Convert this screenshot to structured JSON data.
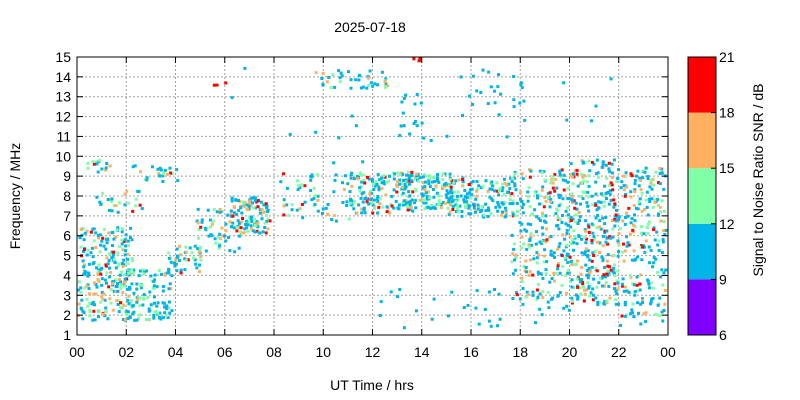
{
  "chart_data": {
    "type": "scatter",
    "title": "2025-07-18",
    "xlabel": "UT Time / hrs",
    "ylabel": "Frequency / MHz",
    "xlim": [
      0,
      24
    ],
    "ylim": [
      1,
      15
    ],
    "grid": true,
    "x_ticks": [
      "00",
      "02",
      "04",
      "06",
      "08",
      "10",
      "12",
      "14",
      "16",
      "18",
      "20",
      "22",
      "00"
    ],
    "y_ticks": [
      "1",
      "2",
      "3",
      "4",
      "5",
      "6",
      "7",
      "8",
      "9",
      "10",
      "11",
      "12",
      "13",
      "14",
      "15"
    ],
    "colorbar": {
      "label": "Signal to Noise Ratio SNR / dB",
      "ticks": [
        "6",
        "9",
        "12",
        "15",
        "18",
        "21"
      ],
      "bins": [
        {
          "min": 6,
          "max": 9,
          "color": "#8000ff"
        },
        {
          "min": 9,
          "max": 12,
          "color": "#00b4e8"
        },
        {
          "min": 12,
          "max": 15,
          "color": "#80ffa8"
        },
        {
          "min": 15,
          "max": 18,
          "color": "#ffb060"
        },
        {
          "min": 18,
          "max": 21,
          "color": "#ff0000"
        }
      ]
    },
    "clusters": [
      {
        "t": [
          0.0,
          2.2
        ],
        "f": [
          1.8,
          6.5
        ],
        "n": 230,
        "snr": [
          9.5,
          19.5
        ]
      },
      {
        "t": [
          0.3,
          1.3
        ],
        "f": [
          9.2,
          9.9
        ],
        "n": 14,
        "snr": [
          9.5,
          19
        ]
      },
      {
        "t": [
          0.6,
          2.6
        ],
        "f": [
          7.2,
          8.4
        ],
        "n": 26,
        "snr": [
          9.5,
          19
        ]
      },
      {
        "t": [
          1.8,
          3.8
        ],
        "f": [
          1.8,
          4.4
        ],
        "n": 120,
        "snr": [
          9.5,
          16
        ]
      },
      {
        "t": [
          2.0,
          4.2
        ],
        "f": [
          8.8,
          9.6
        ],
        "n": 22,
        "snr": [
          9.5,
          19
        ]
      },
      {
        "t": [
          3.6,
          5.0
        ],
        "f": [
          4.2,
          5.6
        ],
        "n": 40,
        "snr": [
          10,
          19.5
        ]
      },
      {
        "t": [
          4.8,
          6.6
        ],
        "f": [
          5.2,
          7.4
        ],
        "n": 55,
        "snr": [
          9.5,
          19
        ]
      },
      {
        "t": [
          6.2,
          7.8
        ],
        "f": [
          6.2,
          8.0
        ],
        "n": 110,
        "snr": [
          10,
          20
        ]
      },
      {
        "t": [
          8.2,
          11.0
        ],
        "f": [
          6.8,
          9.2
        ],
        "n": 55,
        "snr": [
          9.5,
          19
        ]
      },
      {
        "t": [
          9.6,
          12.6
        ],
        "f": [
          13.5,
          14.4
        ],
        "n": 40,
        "snr": [
          9.5,
          17
        ]
      },
      {
        "t": [
          11.0,
          13.6
        ],
        "f": [
          7.2,
          9.3
        ],
        "n": 150,
        "snr": [
          9.5,
          20
        ]
      },
      {
        "t": [
          13.0,
          15.2
        ],
        "f": [
          7.4,
          9.2
        ],
        "n": 130,
        "snr": [
          9.5,
          17
        ]
      },
      {
        "t": [
          13.0,
          14.4
        ],
        "f": [
          10.8,
          13.4
        ],
        "n": 16,
        "snr": [
          9.5,
          12
        ]
      },
      {
        "t": [
          15.0,
          17.8
        ],
        "f": [
          7.0,
          9.0
        ],
        "n": 160,
        "snr": [
          9.5,
          19.5
        ]
      },
      {
        "t": [
          15.8,
          18.2
        ],
        "f": [
          11.8,
          14.6
        ],
        "n": 18,
        "snr": [
          9.5,
          12
        ]
      },
      {
        "t": [
          17.6,
          20.0
        ],
        "f": [
          2.8,
          9.4
        ],
        "n": 240,
        "snr": [
          9.5,
          20
        ]
      },
      {
        "t": [
          20.0,
          21.8
        ],
        "f": [
          2.6,
          9.9
        ],
        "n": 280,
        "snr": [
          9.5,
          20.5
        ]
      },
      {
        "t": [
          21.8,
          24.0
        ],
        "f": [
          2.0,
          9.5
        ],
        "n": 230,
        "snr": [
          9.5,
          20
        ]
      },
      {
        "t": [
          12.0,
          24.0
        ],
        "f": [
          1.4,
          3.4
        ],
        "n": 50,
        "snr": [
          9.5,
          12
        ]
      },
      {
        "t": [
          5.4,
          6.0
        ],
        "f": [
          13.6,
          13.8
        ],
        "n": 3,
        "snr": [
          18,
          20
        ]
      },
      {
        "t": [
          13.6,
          14.2
        ],
        "f": [
          14.85,
          15.0
        ],
        "n": 4,
        "snr": [
          18,
          20
        ]
      },
      {
        "t": [
          6.0,
          22.0
        ],
        "f": [
          9.5,
          14.8
        ],
        "n": 25,
        "snr": [
          9.5,
          12
        ]
      }
    ]
  }
}
